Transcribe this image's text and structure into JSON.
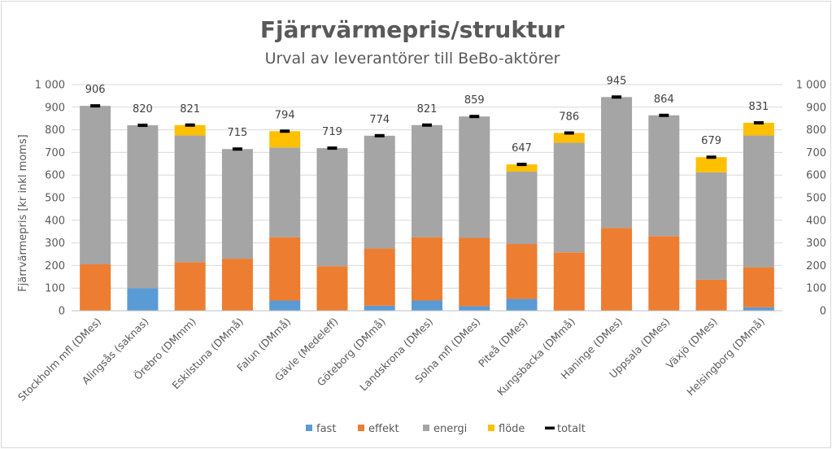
{
  "chart_data": {
    "type": "bar",
    "stacked": true,
    "title": "Fjärrvärmepris/struktur",
    "subtitle": "Urval av leverantörer till BeBo-aktörer",
    "ylabel": "Fjärrvärmepris [kr inkl moms]",
    "xlabel": "",
    "ylim": [
      0,
      1000
    ],
    "yticks": [
      "0",
      "100",
      "200",
      "300",
      "400",
      "500",
      "600",
      "700",
      "800",
      "900",
      "1 000"
    ],
    "secondary_yticks": [
      "0",
      "100",
      "200",
      "300",
      "400",
      "500",
      "600",
      "700",
      "800",
      "900",
      "1 000"
    ],
    "grid": true,
    "legend_position": "bottom",
    "categories": [
      "Stockholm mfl (DMes)",
      "Alingsås (saknas)",
      "Örebro (DMmm)",
      "Eskilstuna (DMmå)",
      "Falun (DMmå)",
      "Gävle (Medeleff)",
      "Göteborg (DMmå)",
      "Landskrona (DMes)",
      "Solna mfl (DMes)",
      "Piteå (DMes)",
      "Kungsbacka (DMmå)",
      "Haninge (DMes)",
      "Uppsala (DMes)",
      "Växjö (DMes)",
      "Helsingborg (DMmå)"
    ],
    "series": [
      {
        "name": "fast",
        "color": "#5b9bd5",
        "values": [
          0,
          100,
          0,
          0,
          45,
          0,
          22,
          45,
          20,
          52,
          0,
          0,
          0,
          0,
          15
        ]
      },
      {
        "name": "effekt",
        "color": "#ed7d31",
        "values": [
          205,
          0,
          215,
          230,
          280,
          197,
          253,
          280,
          302,
          243,
          258,
          366,
          330,
          137,
          177
        ]
      },
      {
        "name": "energi",
        "color": "#a5a5a5",
        "values": [
          701,
          720,
          560,
          485,
          397,
          522,
          499,
          496,
          537,
          320,
          485,
          579,
          534,
          475,
          583
        ]
      },
      {
        "name": "flöde",
        "color": "#ffc000",
        "values": [
          0,
          0,
          46,
          0,
          72,
          0,
          0,
          0,
          0,
          32,
          43,
          0,
          0,
          67,
          56
        ]
      }
    ],
    "totals": {
      "name": "totalt",
      "color": "#000000",
      "values": [
        906,
        820,
        821,
        715,
        794,
        719,
        774,
        821,
        859,
        647,
        786,
        945,
        864,
        679,
        831
      ]
    },
    "data_labels": [
      "906",
      "820",
      "821",
      "715",
      "794",
      "719",
      "774",
      "821",
      "859",
      "647",
      "786",
      "945",
      "864",
      "679",
      "831"
    ]
  }
}
